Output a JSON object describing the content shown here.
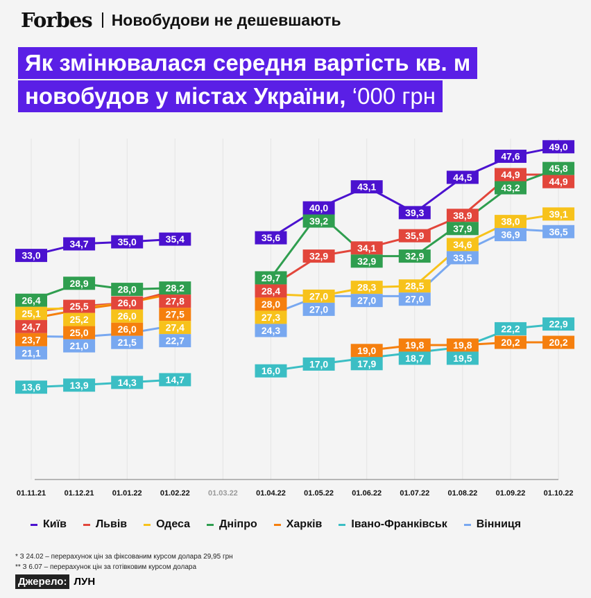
{
  "header": {
    "logo": "Forbes",
    "subtitle": "Новобудови не дешевшають"
  },
  "title": {
    "line1": "Як змінювалася середня вартість кв. м",
    "line2": "новобудов у містах України,",
    "unit": "‘000 грн"
  },
  "chart_data": {
    "type": "line",
    "title": "Як змінювалася середня вартість кв. м новобудов у містах України, ‘000 грн",
    "categories": [
      "01.11.21",
      "01.12.21",
      "01.01.22",
      "01.02.22",
      "01.03.22",
      "01.04.22",
      "01.05.22",
      "01.06.22",
      "01.07.22",
      "01.08.22",
      "01.09.22",
      "01.10.22"
    ],
    "ylim": [
      0,
      50
    ],
    "grid": "vertical",
    "legend_position": "bottom",
    "series": [
      {
        "name": "Київ",
        "color": "#4b12cf",
        "values": [
          33.0,
          34.7,
          35.0,
          35.4,
          null,
          35.6,
          40.0,
          43.1,
          39.3,
          44.5,
          47.6,
          49.0
        ]
      },
      {
        "name": "Львів",
        "color": "#e2463b",
        "values": [
          24.7,
          25.5,
          26.0,
          27.8,
          null,
          28.4,
          32.9,
          34.1,
          35.9,
          38.9,
          44.9,
          44.9
        ]
      },
      {
        "name": "Одеса",
        "color": "#f7c21b",
        "values": [
          25.1,
          25.2,
          26.0,
          27.4,
          null,
          27.3,
          27.0,
          28.3,
          28.5,
          34.6,
          38.0,
          39.1
        ]
      },
      {
        "name": "Дніпро",
        "color": "#2f9e4f",
        "values": [
          26.4,
          28.9,
          28.0,
          28.2,
          null,
          29.7,
          39.2,
          32.9,
          32.9,
          37.9,
          43.2,
          45.8
        ]
      },
      {
        "name": "Харків",
        "color": "#f57f0e",
        "values": [
          23.7,
          25.0,
          26.0,
          27.5,
          null,
          28.0,
          null,
          19.0,
          19.8,
          19.8,
          20.2,
          20.2
        ]
      },
      {
        "name": "Івано-Франківськ",
        "color": "#3bbec4",
        "values": [
          13.6,
          13.9,
          14.3,
          14.7,
          null,
          16.0,
          17.0,
          17.9,
          18.7,
          19.5,
          22.2,
          22.9
        ]
      },
      {
        "name": "Вінниця",
        "color": "#78a8f0",
        "values": [
          21.1,
          21.0,
          21.5,
          22.7,
          null,
          24.3,
          27.0,
          27.0,
          27.0,
          33.5,
          36.9,
          36.5
        ]
      }
    ]
  },
  "notes": [
    "* З 24.02 – перерахунок цін за фіксованим курсом долара 29,95 грн",
    "** З 6.07 – перерахунок цін за готівковим курсом долара"
  ],
  "source": {
    "label": "Джерело:",
    "value": "ЛУН"
  }
}
